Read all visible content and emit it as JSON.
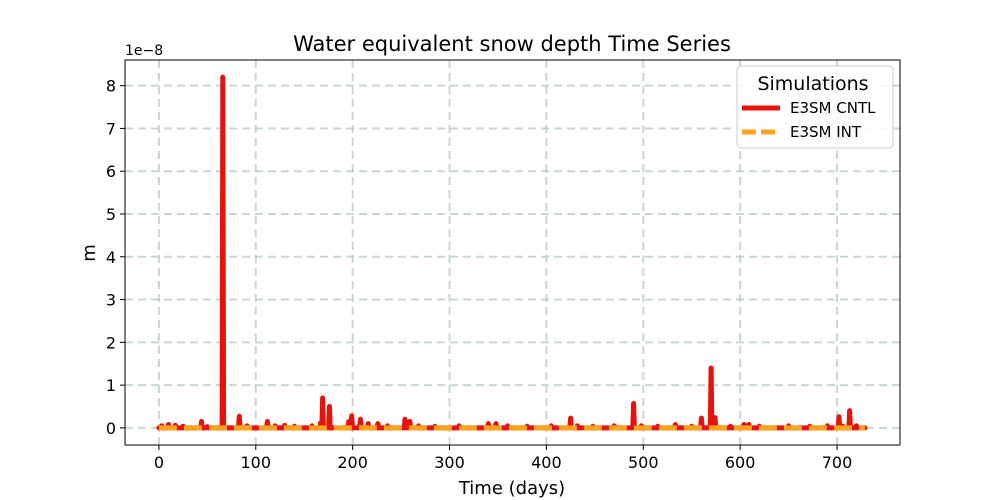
{
  "chart_data": {
    "type": "line",
    "title": "Water equivalent snow depth Time Series",
    "xlabel": "Time (days)",
    "ylabel": "m",
    "y_offset_text": "1e−8",
    "xlim": [
      -35,
      765
    ],
    "ylim": [
      -0.4,
      8.6
    ],
    "x_ticks": [
      0,
      100,
      200,
      300,
      400,
      500,
      600,
      700
    ],
    "y_ticks": [
      0,
      1,
      2,
      3,
      4,
      5,
      6,
      7,
      8
    ],
    "grid": true,
    "legend": {
      "title": "Simulations",
      "placement": "top-right"
    },
    "series": [
      {
        "name": "E3SM CNTL",
        "color": "#e8120c",
        "style": "solid",
        "x_range": [
          0,
          729
        ],
        "baseline": 0,
        "spikes": [
          [
            3,
            0.05
          ],
          [
            10,
            0.08
          ],
          [
            17,
            0.06
          ],
          [
            25,
            0.04
          ],
          [
            44,
            0.15
          ],
          [
            50,
            0.03
          ],
          [
            66,
            8.2
          ],
          [
            83,
            0.27
          ],
          [
            91,
            0.05
          ],
          [
            112,
            0.15
          ],
          [
            120,
            0.05
          ],
          [
            130,
            0.06
          ],
          [
            140,
            0.04
          ],
          [
            158,
            0.05
          ],
          [
            167,
            0.12
          ],
          [
            169,
            0.7
          ],
          [
            176,
            0.5
          ],
          [
            196,
            0.15
          ],
          [
            199,
            0.28
          ],
          [
            208,
            0.2
          ],
          [
            216,
            0.1
          ],
          [
            226,
            0.1
          ],
          [
            236,
            0.05
          ],
          [
            254,
            0.2
          ],
          [
            259,
            0.15
          ],
          [
            268,
            0.05
          ],
          [
            285,
            0.04
          ],
          [
            310,
            0.05
          ],
          [
            340,
            0.1
          ],
          [
            348,
            0.1
          ],
          [
            360,
            0.05
          ],
          [
            380,
            0.04
          ],
          [
            405,
            0.05
          ],
          [
            425,
            0.23
          ],
          [
            432,
            0.05
          ],
          [
            448,
            0.04
          ],
          [
            470,
            0.05
          ],
          [
            490,
            0.57
          ],
          [
            498,
            0.05
          ],
          [
            515,
            0.04
          ],
          [
            533,
            0.08
          ],
          [
            550,
            0.04
          ],
          [
            560,
            0.23
          ],
          [
            570,
            1.4
          ],
          [
            574,
            0.24
          ],
          [
            590,
            0.04
          ],
          [
            604,
            0.08
          ],
          [
            609,
            0.08
          ],
          [
            620,
            0.04
          ],
          [
            650,
            0.05
          ],
          [
            672,
            0.04
          ],
          [
            690,
            0.05
          ],
          [
            702,
            0.26
          ],
          [
            706,
            0.04
          ],
          [
            713,
            0.4
          ],
          [
            720,
            0.05
          ]
        ]
      },
      {
        "name": "E3SM INT",
        "color": "#ffa31a",
        "style": "dashed",
        "x_range": [
          0,
          729
        ],
        "baseline": 0,
        "spikes": []
      }
    ]
  }
}
